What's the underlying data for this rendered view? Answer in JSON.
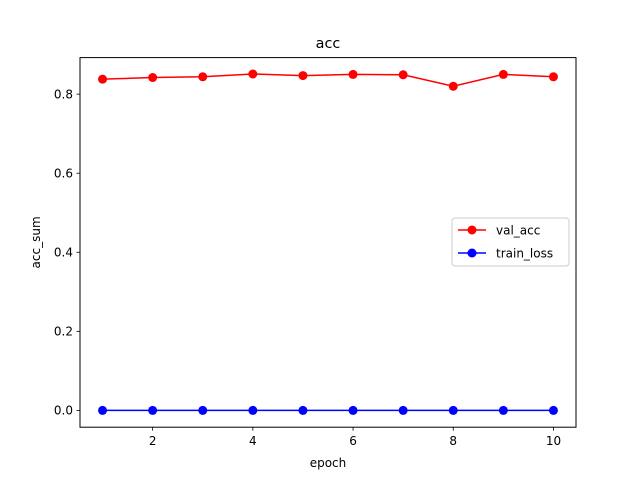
{
  "chart_data": {
    "type": "line",
    "title": "acc",
    "xlabel": "epoch",
    "ylabel": "acc_sum",
    "xlim": [
      0.55,
      10.45
    ],
    "ylim": [
      -0.0425,
      0.8925
    ],
    "xticks": [
      2,
      4,
      6,
      8,
      10
    ],
    "xtick_labels": [
      "2",
      "4",
      "6",
      "8",
      "10"
    ],
    "yticks": [
      0.0,
      0.2,
      0.4,
      0.6,
      0.8
    ],
    "ytick_labels": [
      "0.0",
      "0.2",
      "0.4",
      "0.6",
      "0.8"
    ],
    "grid": false,
    "legend_position": "center-right",
    "x": [
      1,
      2,
      3,
      4,
      5,
      6,
      7,
      8,
      9,
      10
    ],
    "series": [
      {
        "name": "val_acc",
        "color": "#ff0000",
        "marker": "circle",
        "values": [
          0.838,
          0.842,
          0.844,
          0.851,
          0.847,
          0.85,
          0.849,
          0.82,
          0.85,
          0.844
        ]
      },
      {
        "name": "train_loss",
        "color": "#0000ff",
        "marker": "circle",
        "values": [
          0.0,
          0.0,
          0.0,
          0.0,
          0.0,
          0.0,
          0.0,
          0.0,
          0.0,
          0.0
        ]
      }
    ]
  }
}
